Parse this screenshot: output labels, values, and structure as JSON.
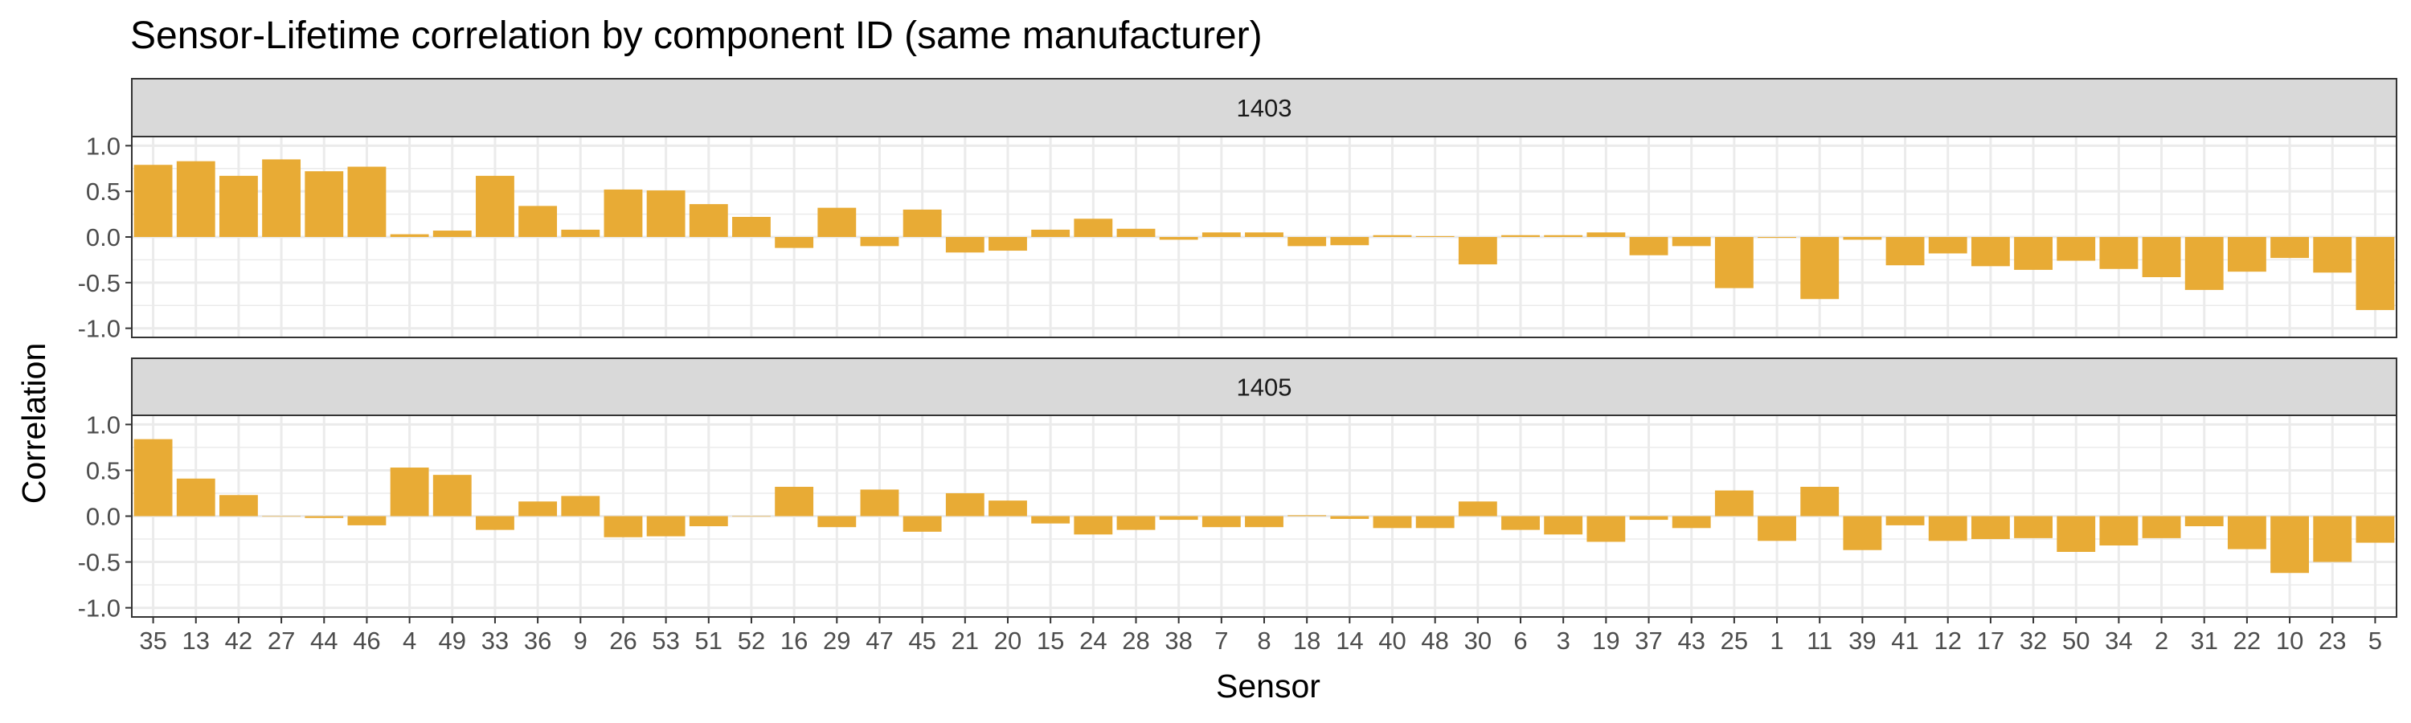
{
  "chart_data": {
    "type": "bar",
    "title": "Sensor-Lifetime correlation by component ID (same manufacturer)",
    "xlabel": "Sensor",
    "ylabel": "Correlation",
    "ylim": [
      -1.1,
      1.1
    ],
    "yticks": [
      -1.0,
      -0.5,
      0.0,
      0.5,
      1.0
    ],
    "ytick_labels": [
      "-1.0",
      "-0.5",
      "0.0",
      "0.5",
      "1.0"
    ],
    "grid": true,
    "bar_color": "#E8AB35",
    "strip_fill": "#D9D9D9",
    "grid_color": "#EBEBEB",
    "categories": [
      "35",
      "13",
      "42",
      "27",
      "44",
      "46",
      "4",
      "49",
      "33",
      "36",
      "9",
      "26",
      "53",
      "51",
      "52",
      "16",
      "29",
      "47",
      "45",
      "21",
      "20",
      "15",
      "24",
      "28",
      "38",
      "7",
      "8",
      "18",
      "14",
      "40",
      "48",
      "30",
      "6",
      "3",
      "19",
      "37",
      "43",
      "25",
      "1",
      "11",
      "39",
      "41",
      "12",
      "17",
      "32",
      "50",
      "34",
      "2",
      "31",
      "22",
      "10",
      "23",
      "5"
    ],
    "panels": [
      {
        "strip_label": "1403",
        "values": [
          0.79,
          0.83,
          0.67,
          0.85,
          0.72,
          0.77,
          0.03,
          0.07,
          0.67,
          0.34,
          0.08,
          0.52,
          0.51,
          0.36,
          0.22,
          -0.12,
          0.32,
          -0.1,
          0.3,
          -0.17,
          -0.15,
          0.08,
          0.2,
          0.09,
          -0.03,
          0.05,
          0.05,
          -0.1,
          -0.09,
          0.02,
          0.01,
          -0.3,
          0.02,
          0.02,
          0.05,
          -0.2,
          -0.1,
          -0.56,
          -0.01,
          -0.68,
          -0.03,
          -0.31,
          -0.18,
          -0.32,
          -0.36,
          -0.26,
          -0.35,
          -0.44,
          -0.58,
          -0.38,
          -0.23,
          -0.39,
          -0.8
        ]
      },
      {
        "strip_label": "1405",
        "values": [
          0.84,
          0.41,
          0.23,
          0.0,
          -0.02,
          -0.1,
          0.53,
          0.45,
          -0.15,
          0.16,
          0.22,
          -0.23,
          -0.22,
          -0.11,
          0.0,
          0.32,
          -0.12,
          0.29,
          -0.17,
          0.25,
          0.17,
          -0.08,
          -0.2,
          -0.15,
          -0.04,
          -0.12,
          -0.12,
          0.01,
          -0.03,
          -0.13,
          -0.13,
          0.16,
          -0.15,
          -0.2,
          -0.28,
          -0.04,
          -0.13,
          0.28,
          -0.27,
          0.32,
          -0.37,
          -0.1,
          -0.27,
          -0.25,
          -0.24,
          -0.39,
          -0.32,
          -0.24,
          -0.11,
          -0.36,
          -0.62,
          -0.5,
          -0.29
        ]
      }
    ]
  }
}
